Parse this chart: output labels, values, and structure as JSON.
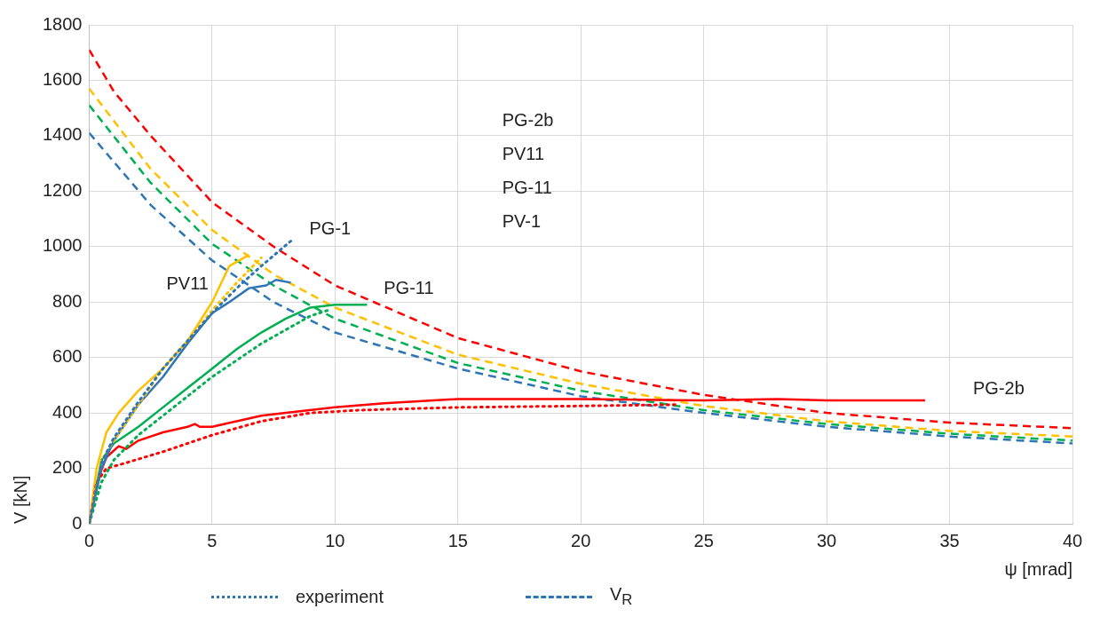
{
  "chart_data": {
    "type": "line",
    "xlabel": "ψ [mrad]",
    "ylabel": "V [kN]",
    "xlim": [
      0,
      40
    ],
    "xticks": [
      0,
      5,
      10,
      15,
      20,
      25,
      30,
      35,
      40
    ],
    "ylim": [
      0,
      1800
    ],
    "yticks": [
      0,
      200,
      400,
      600,
      800,
      1000,
      1200,
      1400,
      1600,
      1800
    ],
    "grid": true,
    "legend": false,
    "marker": "none",
    "series": [
      {
        "color": "#2e75b6",
        "line_style": "dotted",
        "x": [
          0,
          0.5,
          1,
          2,
          3,
          4,
          5,
          6,
          7,
          8.2
        ],
        "values": [
          0,
          220,
          310,
          440,
          560,
          660,
          760,
          850,
          930,
          1020
        ]
      },
      {
        "color": "#ffc000",
        "line_style": "dotted",
        "x": [
          0,
          0.5,
          1,
          2,
          3,
          4,
          5,
          6,
          7
        ],
        "values": [
          0,
          230,
          300,
          430,
          560,
          660,
          770,
          870,
          960
        ]
      },
      {
        "color": "#00b050",
        "line_style": "dotted",
        "x": [
          0,
          0.5,
          1,
          2,
          3,
          4,
          5,
          6,
          7,
          8,
          9,
          9.7
        ],
        "values": [
          0,
          150,
          230,
          320,
          390,
          460,
          530,
          590,
          650,
          700,
          750,
          770
        ]
      },
      {
        "color": "#ff0000",
        "line_style": "dotted",
        "x": [
          0,
          0.3,
          0.7,
          1.5,
          3,
          5,
          7,
          9,
          11,
          15,
          20,
          24
        ],
        "values": [
          0,
          150,
          200,
          220,
          260,
          320,
          370,
          400,
          410,
          420,
          425,
          430
        ]
      },
      {
        "color": "#2e75b6",
        "line_style": "solid",
        "x": [
          0,
          0.5,
          1,
          2,
          3,
          4,
          5,
          5.7,
          6.5,
          7.2,
          7.6,
          8.2
        ],
        "values": [
          0,
          200,
          300,
          430,
          530,
          650,
          760,
          800,
          850,
          860,
          880,
          870
        ]
      },
      {
        "color": "#ffc000",
        "line_style": "solid",
        "x": [
          0,
          0.3,
          0.7,
          1.2,
          2,
          3,
          4,
          5,
          5.7,
          6.5
        ],
        "values": [
          0,
          200,
          330,
          400,
          480,
          560,
          660,
          800,
          930,
          970
        ]
      },
      {
        "color": "#00b050",
        "line_style": "solid",
        "x": [
          0,
          0.5,
          1,
          2,
          3,
          4,
          5,
          6,
          7,
          8,
          9,
          10,
          11.3
        ],
        "values": [
          0,
          230,
          290,
          350,
          420,
          490,
          560,
          630,
          690,
          740,
          780,
          790,
          790
        ]
      },
      {
        "color": "#ff0000",
        "line_style": "solid",
        "x": [
          0,
          0.3,
          0.7,
          1.2,
          1.5,
          2,
          3,
          4,
          4.3,
          4.5,
          5,
          6,
          7,
          8,
          10,
          12,
          14,
          15,
          18,
          20,
          25,
          28,
          30,
          34
        ],
        "values": [
          0,
          150,
          240,
          280,
          270,
          300,
          330,
          350,
          360,
          350,
          350,
          370,
          390,
          400,
          420,
          435,
          445,
          450,
          450,
          450,
          445,
          450,
          445,
          445
        ]
      },
      {
        "color": "#ff0000",
        "line_style": "dashed",
        "x": [
          0,
          1,
          2.5,
          5,
          7.5,
          10,
          15,
          20,
          25,
          30,
          35,
          40
        ],
        "values": [
          1710,
          1560,
          1400,
          1160,
          1000,
          860,
          670,
          550,
          465,
          400,
          365,
          345
        ]
      },
      {
        "color": "#ffc000",
        "line_style": "dashed",
        "x": [
          0,
          2.5,
          5,
          7.5,
          10,
          15,
          20,
          25,
          30,
          35,
          40
        ],
        "values": [
          1570,
          1280,
          1060,
          900,
          780,
          610,
          505,
          425,
          370,
          335,
          315
        ]
      },
      {
        "color": "#00b050",
        "line_style": "dashed",
        "x": [
          0,
          2.5,
          5,
          7.5,
          10,
          15,
          20,
          25,
          30,
          35,
          40
        ],
        "values": [
          1510,
          1230,
          1010,
          860,
          740,
          580,
          480,
          410,
          360,
          325,
          300
        ]
      },
      {
        "color": "#2e75b6",
        "line_style": "dashed",
        "x": [
          0,
          2.5,
          5,
          7.5,
          10,
          15,
          20,
          25,
          30,
          35,
          40
        ],
        "values": [
          1410,
          1150,
          950,
          800,
          690,
          560,
          460,
          400,
          350,
          315,
          290
        ]
      }
    ],
    "annotations": [
      "PG-1",
      "PV11",
      "PG-11",
      "PG-2b",
      "PG-2b",
      "PV11",
      "PG-11",
      "PV-1",
      "experiment",
      "V$_{R}$"
    ]
  }
}
